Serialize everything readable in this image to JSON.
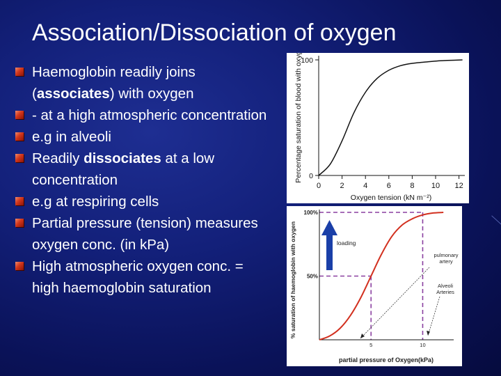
{
  "slide": {
    "title": "Association/Dissociation of oxygen",
    "bullets": [
      {
        "pre": "Haemoglobin readily joins (",
        "bold": "associates",
        "post": ") with oxygen"
      },
      {
        "pre": "- at a high atmospheric concentration",
        "bold": "",
        "post": ""
      },
      {
        "pre": "e.g in alveoli",
        "bold": "",
        "post": ""
      },
      {
        "pre": "Readily ",
        "bold": "dissociates",
        "post": " at a low concentration"
      },
      {
        "pre": "e.g at respiring cells",
        "bold": "",
        "post": ""
      },
      {
        "pre": "Partial pressure (tension) measures oxygen conc. (in kPa)",
        "bold": "",
        "post": ""
      },
      {
        "pre": "High atmospheric oxygen conc. = high haemoglobin saturation",
        "bold": "",
        "post": ""
      }
    ],
    "colors": {
      "bullet": "#d2361c",
      "background": "#13207a"
    }
  },
  "chart_data": [
    {
      "type": "line",
      "ylabel": "Percentage saturation of blood with oxygen",
      "xlabel": "Oxygen tension (kN m⁻²)",
      "x_ticks": [
        "0",
        "2",
        "4",
        "6",
        "8",
        "10",
        "12"
      ],
      "y_ticks": [
        "0",
        "100"
      ],
      "xlim": [
        0,
        12.5
      ],
      "ylim": [
        0,
        100
      ],
      "series": [
        {
          "x": [
            0,
            1,
            2,
            3,
            4,
            5,
            6,
            7,
            8,
            9,
            10,
            11,
            12.3
          ],
          "y": [
            0,
            10,
            30,
            54,
            72,
            84,
            91,
            95,
            97,
            98,
            99,
            99.5,
            100
          ]
        }
      ]
    },
    {
      "type": "line",
      "ylabel": "% saturation of haemoglobin with oxygen",
      "xlabel": "partial pressure of Oxygen(kPa)",
      "x_ticks": [
        "5",
        "10"
      ],
      "y_ticks": [
        "50%",
        "100%"
      ],
      "xlim": [
        0,
        13
      ],
      "ylim": [
        0,
        100
      ],
      "series": [
        {
          "color": "#d2301f",
          "x": [
            0,
            1,
            2,
            3,
            4,
            5,
            6,
            7,
            8,
            9,
            10,
            11,
            12
          ],
          "y": [
            0,
            3,
            9,
            19,
            33,
            50,
            67,
            81,
            90,
            95,
            98,
            99.5,
            100
          ]
        }
      ],
      "annotations": [
        {
          "text": "loading",
          "color": "#1a3fa8"
        },
        {
          "text": "pulmonary artery"
        },
        {
          "text": "Alveoli Arteries"
        }
      ],
      "guide_color": "#8a3fa0"
    }
  ]
}
